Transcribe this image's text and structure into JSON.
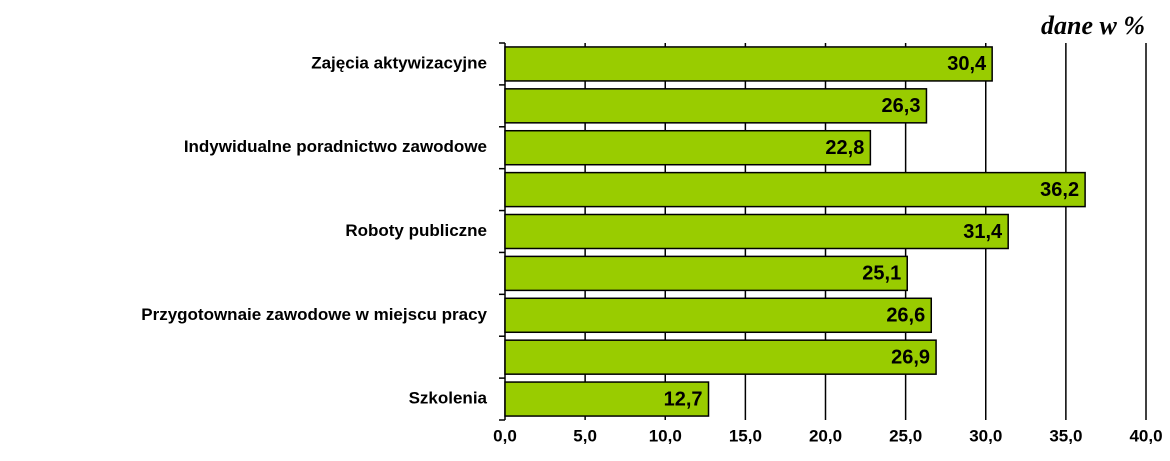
{
  "chart_data": {
    "type": "barh",
    "annotation": "dane w %",
    "categories": [
      "Zajęcia aktywizacyjne",
      null,
      "Indywidualne poradnictwo zawodowe",
      null,
      "Roboty publiczne",
      null,
      "Przygotownaie zawodowe w miejscu pracy",
      null,
      "Szkolenia"
    ],
    "values": [
      30.4,
      26.3,
      22.8,
      36.2,
      31.4,
      25.1,
      26.6,
      26.9,
      12.7
    ],
    "value_labels": [
      "30,4",
      "26,3",
      "22,8",
      "36,2",
      "31,4",
      "25,1",
      "26,6",
      "26,9",
      "12,7"
    ],
    "color": "#99cc00",
    "xlim": [
      0,
      40
    ],
    "xticks": [
      {
        "value": 0,
        "label": "0,0"
      },
      {
        "value": 5,
        "label": "5,0"
      },
      {
        "value": 10,
        "label": "10,0"
      },
      {
        "value": 15,
        "label": "15,0"
      },
      {
        "value": 20,
        "label": "20,0"
      },
      {
        "value": 25,
        "label": "25,0"
      },
      {
        "value": 30,
        "label": "30,0"
      },
      {
        "value": 35,
        "label": "35,0"
      },
      {
        "value": 40,
        "label": "40,0"
      }
    ],
    "grid": true
  }
}
